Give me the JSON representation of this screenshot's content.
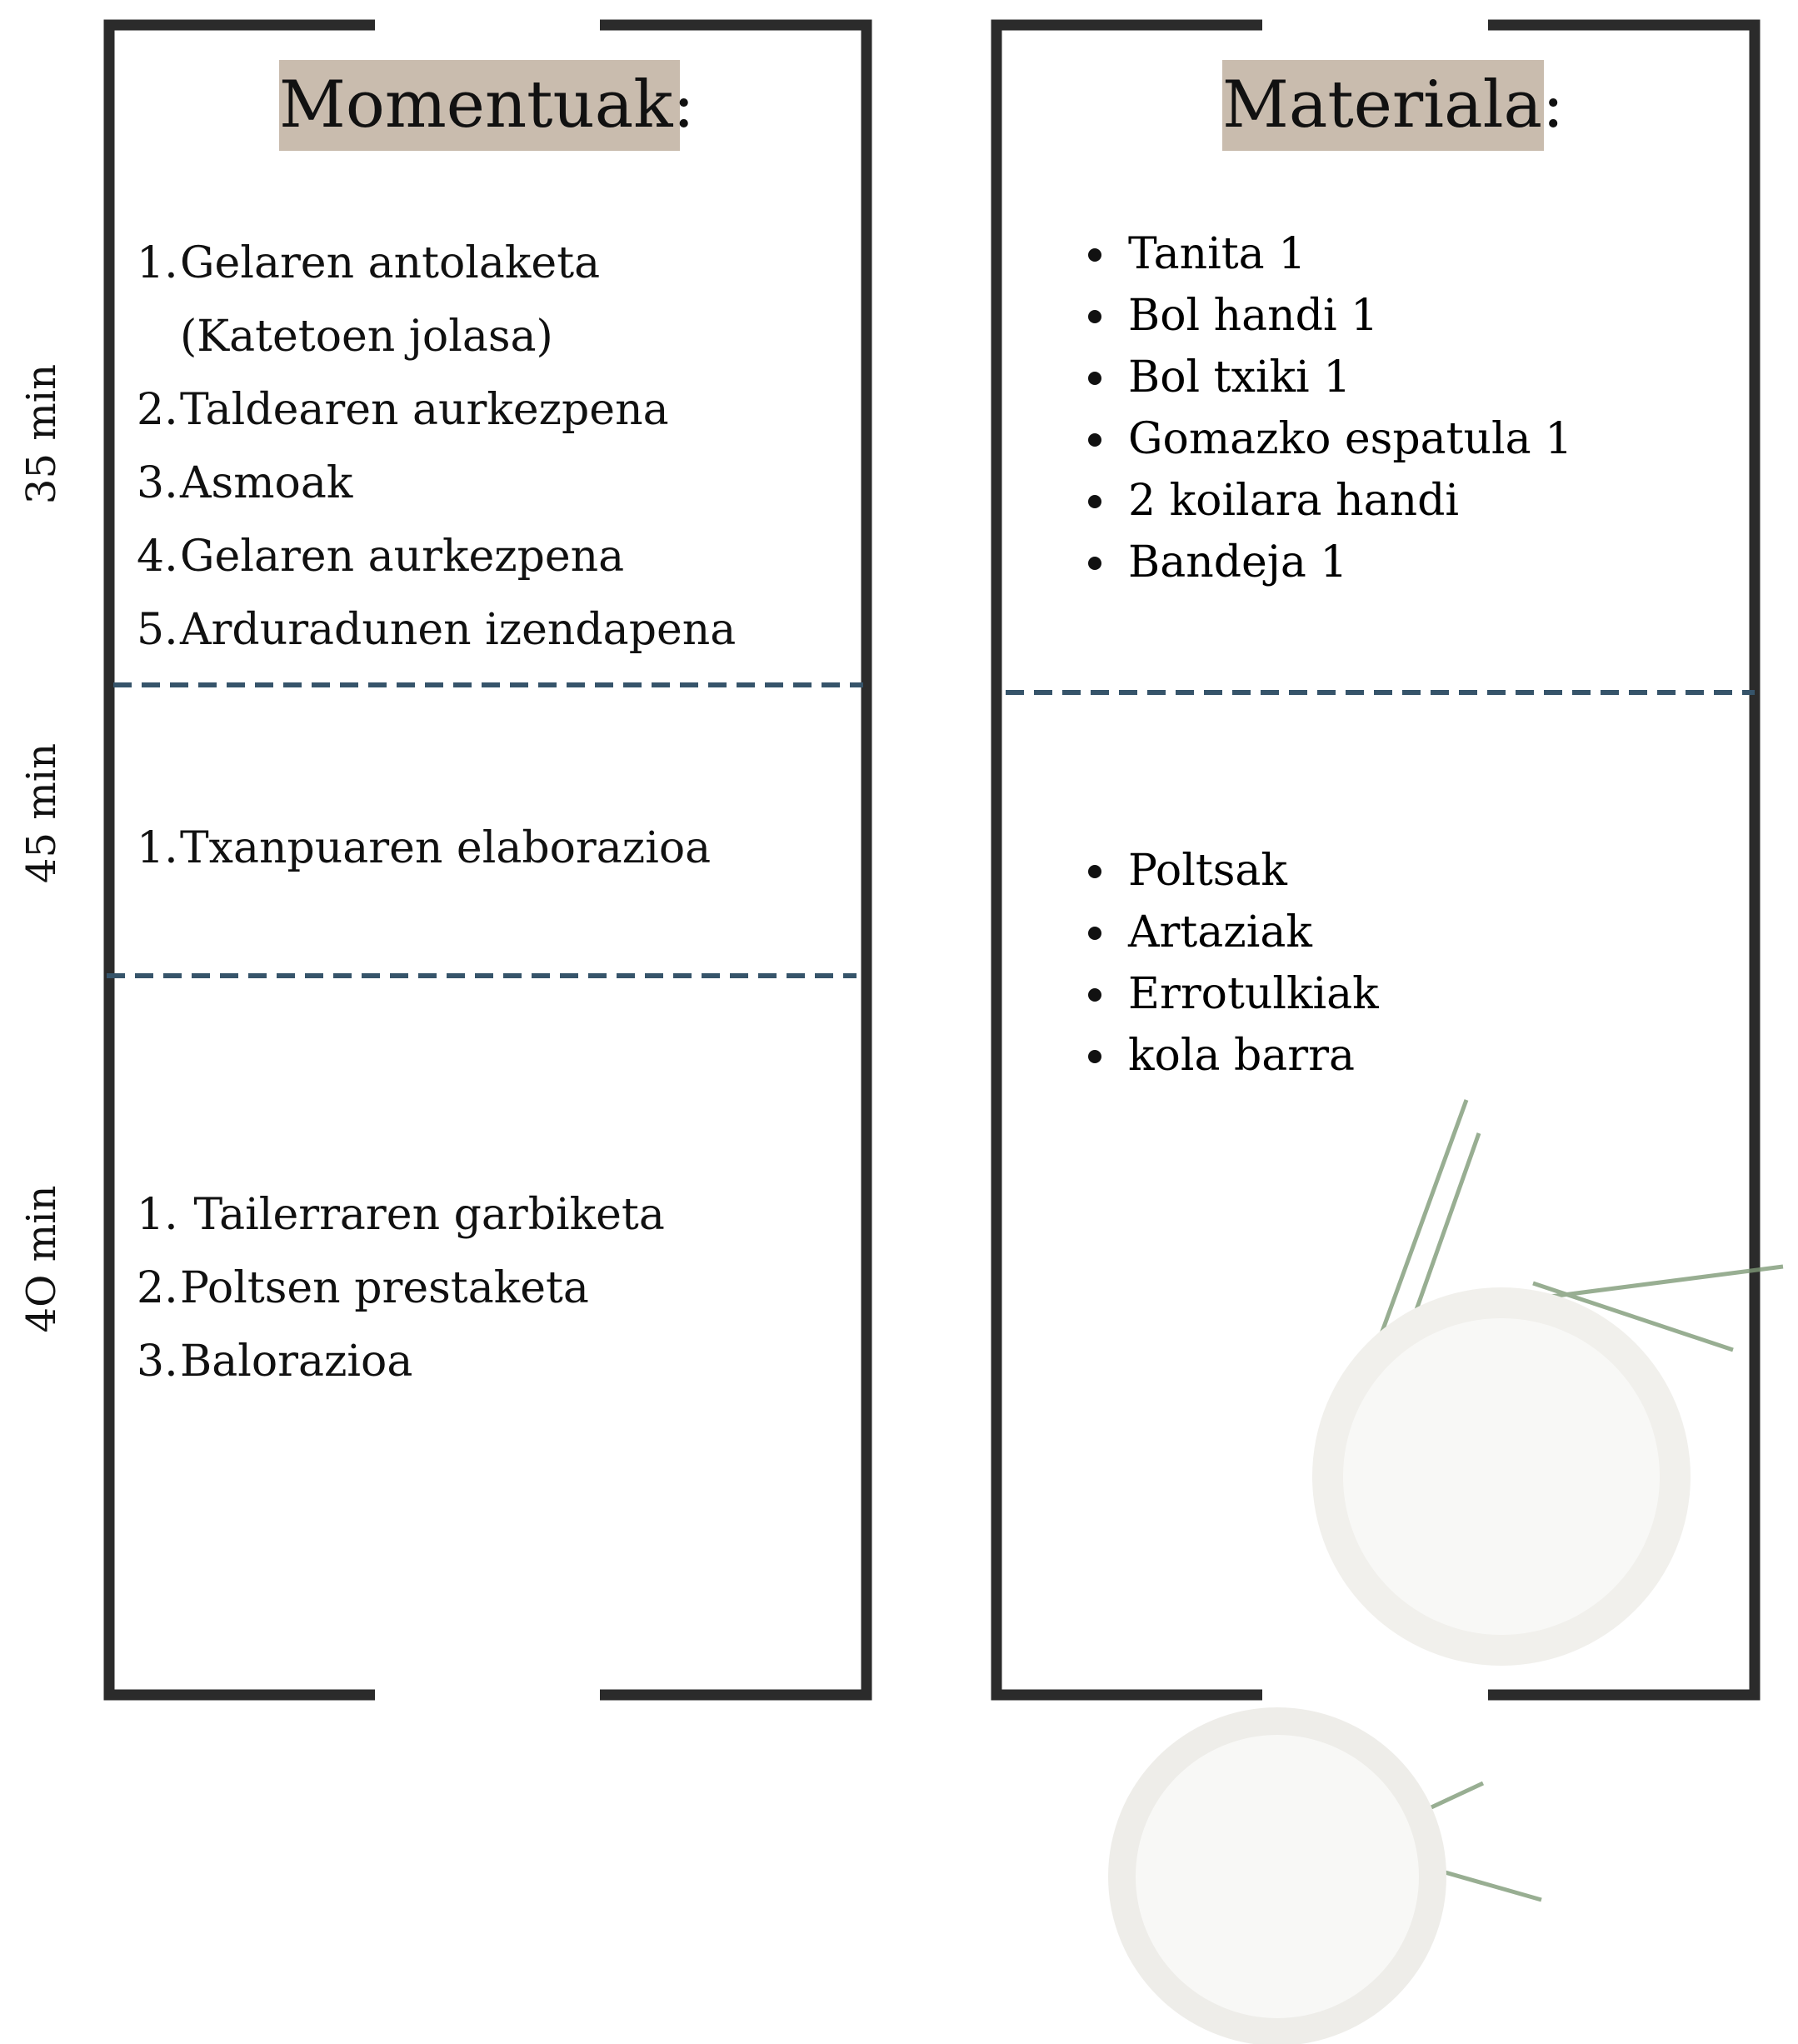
{
  "momentuak": {
    "title": "Momentuak:",
    "sections": [
      {
        "time": "35 min",
        "items": [
          {
            "number": "1.",
            "text": "Gelaren antolaketa (Katetoen jolasa)"
          },
          {
            "number": "2.",
            "text": "Taldearen aurkezpena"
          },
          {
            "number": "3.",
            "text": "Asmoak"
          },
          {
            "number": "4.",
            "text": "Gelaren aurkezpena"
          },
          {
            "number": "5.",
            "text": "Arduradunen izendapena"
          }
        ]
      },
      {
        "time": "45 min",
        "items": [
          {
            "number": "1.",
            "text": "Txanpuaren elaborazioa"
          }
        ]
      },
      {
        "time": "4O min",
        "items": [
          {
            "number": "1.",
            "text": " Tailerraren garbiketa"
          },
          {
            "number": "2.",
            "text": "Poltsen prestaketa"
          },
          {
            "number": "3.",
            "text": "Balorazioa"
          }
        ]
      }
    ]
  },
  "materiala": {
    "title": "Materiala:",
    "lists": [
      [
        "Tanita 1",
        "Bol handi 1",
        "Bol txiki 1",
        "Gomazko espatula 1",
        "2 koilara handi",
        "Bandeja 1"
      ],
      [
        "Poltsak",
        "Artaziak",
        "Errotulkiak",
        "kola barra"
      ]
    ]
  }
}
